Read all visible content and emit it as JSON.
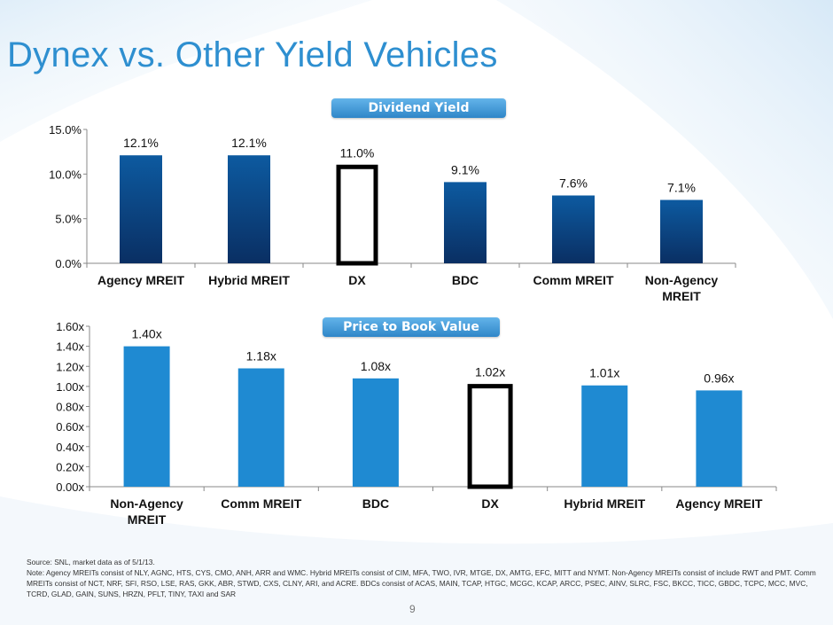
{
  "title": "Dynex vs. Other Yield Vehicles",
  "page_number": "9",
  "colors": {
    "title": "#2e8fd0",
    "dividend_bar_top": "#0d5aa0",
    "dividend_bar_bottom": "#0a2f63",
    "ptb_bar": "#1f8ad2",
    "highlight_outline": "#000000"
  },
  "chart_data": [
    {
      "type": "bar",
      "title": "Dividend Yield",
      "categories": [
        "Agency MREIT",
        "Hybrid MREIT",
        "DX",
        "BDC",
        "Comm MREIT",
        "Non-Agency MREIT"
      ],
      "category_lines": [
        [
          "Agency MREIT"
        ],
        [
          "Hybrid MREIT"
        ],
        [
          "DX"
        ],
        [
          "BDC"
        ],
        [
          "Comm MREIT"
        ],
        [
          "Non-Agency",
          "MREIT"
        ]
      ],
      "values": [
        12.1,
        12.1,
        11.0,
        9.1,
        7.6,
        7.1
      ],
      "data_labels": [
        "12.1%",
        "12.1%",
        "11.0%",
        "9.1%",
        "7.6%",
        "7.1%"
      ],
      "highlight": "DX",
      "ylim": [
        0,
        15
      ],
      "yticks": [
        0,
        5,
        10,
        15
      ],
      "ytick_labels": [
        "0.0%",
        "5.0%",
        "10.0%",
        "15.0%"
      ],
      "xlabel": "",
      "ylabel": "",
      "grid": false
    },
    {
      "type": "bar",
      "title": "Price to Book Value",
      "categories": [
        "Non-Agency MREIT",
        "Comm MREIT",
        "BDC",
        "DX",
        "Hybrid MREIT",
        "Agency MREIT"
      ],
      "category_lines": [
        [
          "Non-Agency",
          "MREIT"
        ],
        [
          "Comm MREIT"
        ],
        [
          "BDC"
        ],
        [
          "DX"
        ],
        [
          "Hybrid MREIT"
        ],
        [
          "Agency MREIT"
        ]
      ],
      "values": [
        1.4,
        1.18,
        1.08,
        1.02,
        1.01,
        0.96
      ],
      "data_labels": [
        "1.40x",
        "1.18x",
        "1.08x",
        "1.02x",
        "1.01x",
        "0.96x"
      ],
      "highlight": "DX",
      "ylim": [
        0,
        1.6
      ],
      "yticks": [
        0,
        0.2,
        0.4,
        0.6,
        0.8,
        1.0,
        1.2,
        1.4,
        1.6
      ],
      "ytick_labels": [
        "0.00x",
        "0.20x",
        "0.40x",
        "0.60x",
        "0.80x",
        "1.00x",
        "1.20x",
        "1.40x",
        "1.60x"
      ],
      "xlabel": "",
      "ylabel": "",
      "grid": false
    }
  ],
  "footnote": {
    "source": "Source: SNL, market data as of 5/1/13.",
    "note": "Note: Agency MREITs consist of NLY, AGNC, HTS, CYS, CMO, ANH, ARR and WMC. Hybrid MREITs consist of CIM, MFA, TWO, IVR, MTGE, DX, AMTG, EFC, MITT and NYMT. Non-Agency MREITs consist of include RWT and PMT. Comm MREITs consist of NCT, NRF, SFI, RSO, LSE, RAS, GKK, ABR, STWD, CXS, CLNY, ARI, and ACRE. BDCs consist of ACAS, MAIN, TCAP, HTGC, MCGC, KCAP, ARCC, PSEC, AINV, SLRC, FSC, BKCC, TICC, GBDC, TCPC, MCC, MVC, TCRD, GLAD, GAIN, SUNS, HRZN, PFLT, TINY, TAXI and SAR"
  }
}
